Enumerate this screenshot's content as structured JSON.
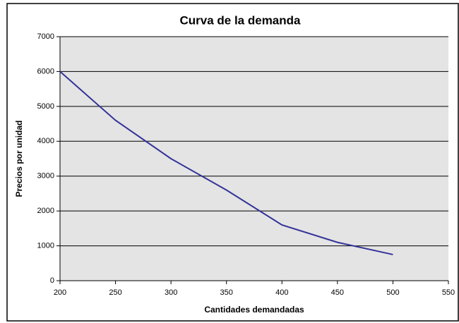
{
  "chart_data": {
    "type": "line",
    "title": "Curva de la demanda",
    "xlabel": "Cantidades demandadas",
    "ylabel": "Precios por unidad",
    "x": [
      200,
      250,
      300,
      350,
      400,
      450,
      500
    ],
    "series": [
      {
        "color": "#333399",
        "values": [
          6000,
          4600,
          3500,
          2600,
          1600,
          1100,
          750
        ]
      }
    ],
    "xlim": [
      200,
      550
    ],
    "xticks": [
      200,
      250,
      300,
      350,
      400,
      450,
      500,
      550
    ],
    "ylim": [
      0,
      7000
    ],
    "yticks": [
      0,
      1000,
      2000,
      3000,
      4000,
      5000,
      6000,
      7000
    ],
    "grid": true
  }
}
